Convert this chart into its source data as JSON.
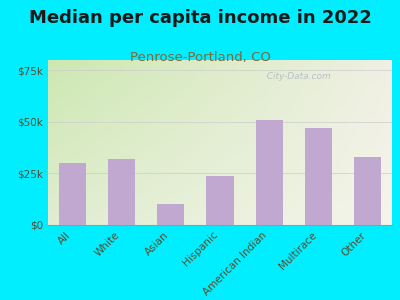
{
  "title": "Median per capita income in 2022",
  "subtitle": "Penrose-Portland, CO",
  "categories": [
    "All",
    "White",
    "Asian",
    "Hispanic",
    "American Indian",
    "Multirace",
    "Other"
  ],
  "values": [
    30000,
    32000,
    10000,
    24000,
    51000,
    47000,
    33000
  ],
  "bar_color": "#c0a8d0",
  "title_fontsize": 13,
  "subtitle_fontsize": 9.5,
  "subtitle_color": "#7a6a3a",
  "tick_label_color": "#5a4a2a",
  "background_outer": "#00eeff",
  "ylim": [
    0,
    80000
  ],
  "yticks": [
    0,
    25000,
    50000,
    75000
  ],
  "ytick_labels": [
    "$0",
    "$25k",
    "$50k",
    "$75k"
  ],
  "watermark": "  City-Data.com",
  "bg_top_left": "#cce8b0",
  "bg_bottom_right": "#f0f0e4"
}
